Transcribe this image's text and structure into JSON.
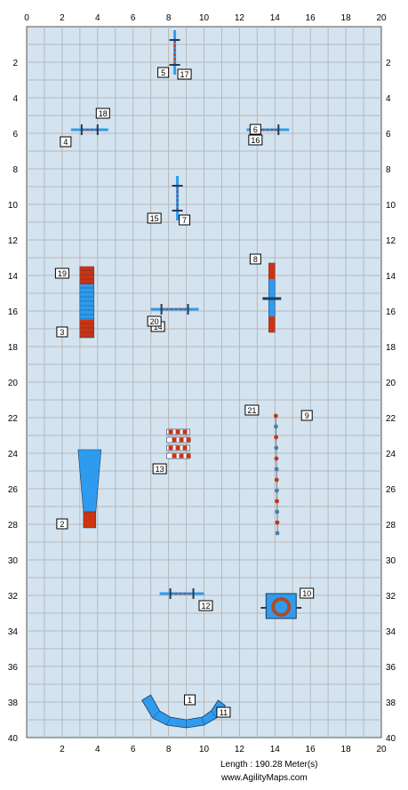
{
  "axis": {
    "x_ticks": [
      "0",
      "2",
      "4",
      "6",
      "8",
      "10",
      "12",
      "14",
      "16",
      "18",
      "20"
    ],
    "y_ticks": [
      "2",
      "4",
      "6",
      "8",
      "10",
      "12",
      "14",
      "16",
      "18",
      "20",
      "22",
      "24",
      "26",
      "28",
      "30",
      "32",
      "34",
      "36",
      "38",
      "40"
    ],
    "x_max": 20,
    "y_max": 40
  },
  "colors": {
    "field": "#d4e3f0",
    "grid": "#b8b8b8",
    "blue": "#2e9bef",
    "red": "#cc3311",
    "dark": "#1f3c5a"
  },
  "labels": [
    {
      "text": "1",
      "x": 9.2,
      "y": 37.9
    },
    {
      "text": "2",
      "x": 2.0,
      "y": 28.0
    },
    {
      "text": "3",
      "x": 2.0,
      "y": 17.2
    },
    {
      "text": "4",
      "x": 2.2,
      "y": 6.5
    },
    {
      "text": "5",
      "x": 7.7,
      "y": 2.6
    },
    {
      "text": "6",
      "x": 12.9,
      "y": 5.8
    },
    {
      "text": "7",
      "x": 8.9,
      "y": 10.9
    },
    {
      "text": "8",
      "x": 12.9,
      "y": 13.1
    },
    {
      "text": "9",
      "x": 15.8,
      "y": 21.9
    },
    {
      "text": "10",
      "x": 15.8,
      "y": 31.9
    },
    {
      "text": "11",
      "x": 11.1,
      "y": 38.6
    },
    {
      "text": "12",
      "x": 10.1,
      "y": 32.6
    },
    {
      "text": "13",
      "x": 7.5,
      "y": 24.9
    },
    {
      "text": "14",
      "x": 7.4,
      "y": 16.9
    },
    {
      "text": "15",
      "x": 7.2,
      "y": 10.8
    },
    {
      "text": "16",
      "x": 12.9,
      "y": 6.4
    },
    {
      "text": "17",
      "x": 8.9,
      "y": 2.7
    },
    {
      "text": "18",
      "x": 4.3,
      "y": 4.9
    },
    {
      "text": "19",
      "x": 2.0,
      "y": 13.9
    },
    {
      "text": "20",
      "x": 7.2,
      "y": 16.6
    },
    {
      "text": "21",
      "x": 12.7,
      "y": 21.6
    }
  ],
  "footer": {
    "length": "Length : 190.28 Meter(s)",
    "site": "www.AgilityMaps.com"
  }
}
